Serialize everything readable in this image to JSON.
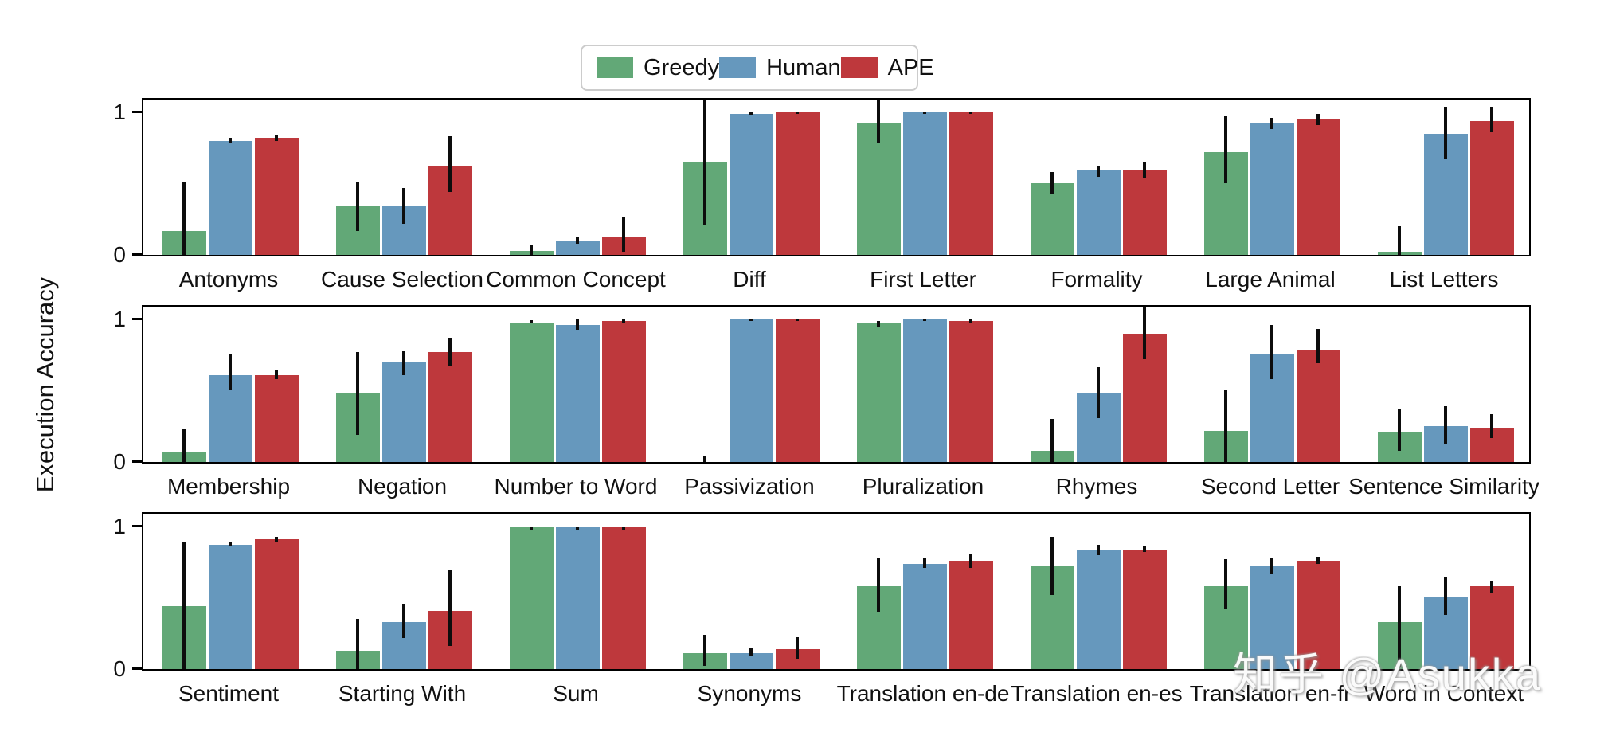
{
  "figure": {
    "ylabel": "Execution Accuracy",
    "watermark": "知乎 @Asukka"
  },
  "legend": {
    "position": "top-center",
    "items": [
      {
        "label": "Greedy",
        "color": "#62A877"
      },
      {
        "label": "Human",
        "color": "#6698BD"
      },
      {
        "label": "APE",
        "color": "#BE383C"
      }
    ]
  },
  "chart_data": {
    "type": "bar",
    "title": "",
    "xlabel": "",
    "ylabel": "Execution Accuracy",
    "ylim": [
      0,
      1.11
    ],
    "yticks": [
      0,
      1
    ],
    "grid": false,
    "legend_position": "top-center",
    "error_bars": true,
    "series_names": [
      "Greedy",
      "Human",
      "APE"
    ],
    "series_colors": {
      "Greedy": "#62A877",
      "Human": "#6698BD",
      "APE": "#BE383C"
    },
    "rows": [
      {
        "groups": [
          {
            "label": "Antonyms",
            "values": [
              0.17,
              0.8,
              0.82
            ],
            "errors": [
              [
                0.0,
                0.51
              ],
              [
                0.78,
                0.82
              ],
              [
                0.8,
                0.84
              ]
            ]
          },
          {
            "label": "Cause Selection",
            "values": [
              0.34,
              0.34,
              0.62
            ],
            "errors": [
              [
                0.17,
                0.51
              ],
              [
                0.22,
                0.47
              ],
              [
                0.44,
                0.83
              ]
            ]
          },
          {
            "label": "Common Concept",
            "values": [
              0.03,
              0.1,
              0.13
            ],
            "errors": [
              [
                0.0,
                0.07
              ],
              [
                0.08,
                0.13
              ],
              [
                0.02,
                0.26
              ]
            ]
          },
          {
            "label": "Diff",
            "values": [
              0.65,
              0.99,
              1.0
            ],
            "errors": [
              [
                0.21,
                1.1
              ],
              [
                0.98,
                1.0
              ],
              [
                0.99,
                1.0
              ]
            ]
          },
          {
            "label": "First Letter",
            "values": [
              0.92,
              1.0,
              1.0
            ],
            "errors": [
              [
                0.78,
                1.08
              ],
              [
                0.99,
                1.0
              ],
              [
                0.99,
                1.0
              ]
            ]
          },
          {
            "label": "Formality",
            "values": [
              0.5,
              0.59,
              0.59
            ],
            "errors": [
              [
                0.43,
                0.58
              ],
              [
                0.55,
                0.63
              ],
              [
                0.54,
                0.65
              ]
            ]
          },
          {
            "label": "Large Animal",
            "values": [
              0.72,
              0.92,
              0.95
            ],
            "errors": [
              [
                0.5,
                0.97
              ],
              [
                0.88,
                0.96
              ],
              [
                0.91,
                0.99
              ]
            ]
          },
          {
            "label": "List Letters",
            "values": [
              0.02,
              0.85,
              0.94
            ],
            "errors": [
              [
                0.0,
                0.2
              ],
              [
                0.67,
                1.04
              ],
              [
                0.86,
                1.04
              ]
            ]
          }
        ]
      },
      {
        "groups": [
          {
            "label": "Membership",
            "values": [
              0.07,
              0.61,
              0.61
            ],
            "errors": [
              [
                0.0,
                0.23
              ],
              [
                0.5,
                0.75
              ],
              [
                0.58,
                0.64
              ]
            ]
          },
          {
            "label": "Negation",
            "values": [
              0.48,
              0.7,
              0.77
            ],
            "errors": [
              [
                0.19,
                0.77
              ],
              [
                0.61,
                0.78
              ],
              [
                0.67,
                0.87
              ]
            ]
          },
          {
            "label": "Number to Word",
            "values": [
              0.98,
              0.96,
              0.99
            ],
            "errors": [
              [
                0.97,
                0.99
              ],
              [
                0.93,
                1.0
              ],
              [
                0.97,
                1.0
              ]
            ]
          },
          {
            "label": "Passivization",
            "values": [
              0.0,
              1.0,
              1.0
            ],
            "errors": [
              [
                0.0,
                0.04
              ],
              [
                0.99,
                1.0
              ],
              [
                0.99,
                1.0
              ]
            ]
          },
          {
            "label": "Pluralization",
            "values": [
              0.97,
              1.0,
              0.99
            ],
            "errors": [
              [
                0.95,
                0.99
              ],
              [
                0.99,
                1.0
              ],
              [
                0.98,
                1.0
              ]
            ]
          },
          {
            "label": "Rhymes",
            "values": [
              0.08,
              0.48,
              0.9
            ],
            "errors": [
              [
                0.0,
                0.3
              ],
              [
                0.31,
                0.67
              ],
              [
                0.72,
                1.09
              ]
            ]
          },
          {
            "label": "Second Letter",
            "values": [
              0.22,
              0.76,
              0.79
            ],
            "errors": [
              [
                0.0,
                0.5
              ],
              [
                0.58,
                0.96
              ],
              [
                0.69,
                0.93
              ]
            ]
          },
          {
            "label": "Sentence Similarity",
            "values": [
              0.21,
              0.25,
              0.24
            ],
            "errors": [
              [
                0.08,
                0.37
              ],
              [
                0.13,
                0.39
              ],
              [
                0.17,
                0.34
              ]
            ]
          }
        ]
      },
      {
        "groups": [
          {
            "label": "Sentiment",
            "values": [
              0.44,
              0.87,
              0.91
            ],
            "errors": [
              [
                0.0,
                0.89
              ],
              [
                0.86,
                0.89
              ],
              [
                0.89,
                0.93
              ]
            ]
          },
          {
            "label": "Starting With",
            "values": [
              0.13,
              0.33,
              0.41
            ],
            "errors": [
              [
                0.0,
                0.35
              ],
              [
                0.22,
                0.46
              ],
              [
                0.16,
                0.69
              ]
            ]
          },
          {
            "label": "Sum",
            "values": [
              1.0,
              1.0,
              1.0
            ],
            "errors": [
              [
                0.98,
                1.0
              ],
              [
                0.98,
                1.0
              ],
              [
                0.98,
                1.0
              ]
            ]
          },
          {
            "label": "Synonyms",
            "values": [
              0.11,
              0.11,
              0.14
            ],
            "errors": [
              [
                0.02,
                0.24
              ],
              [
                0.09,
                0.15
              ],
              [
                0.07,
                0.22
              ]
            ]
          },
          {
            "label": "Translation en-de",
            "values": [
              0.58,
              0.74,
              0.76
            ],
            "errors": [
              [
                0.4,
                0.78
              ],
              [
                0.71,
                0.78
              ],
              [
                0.71,
                0.81
              ]
            ]
          },
          {
            "label": "Translation en-es",
            "values": [
              0.72,
              0.83,
              0.84
            ],
            "errors": [
              [
                0.52,
                0.93
              ],
              [
                0.8,
                0.87
              ],
              [
                0.82,
                0.86
              ]
            ]
          },
          {
            "label": "Translation en-fr",
            "values": [
              0.58,
              0.72,
              0.76
            ],
            "errors": [
              [
                0.42,
                0.77
              ],
              [
                0.67,
                0.78
              ],
              [
                0.74,
                0.79
              ]
            ]
          },
          {
            "label": "Word in Context",
            "values": [
              0.33,
              0.51,
              0.58
            ],
            "errors": [
              [
                0.01,
                0.58
              ],
              [
                0.38,
                0.65
              ],
              [
                0.53,
                0.62
              ]
            ]
          }
        ]
      }
    ]
  }
}
